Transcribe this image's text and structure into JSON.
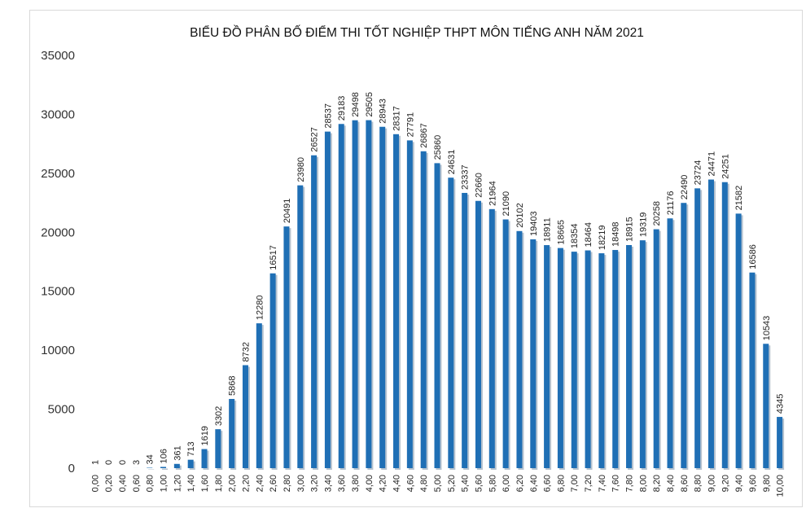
{
  "chart_data": {
    "type": "bar",
    "title": "BIỂU ĐỒ PHÂN BỐ ĐIỂM THI TỐT NGHIỆP THPT MÔN TIẾNG ANH NĂM 2021",
    "xlabel": "",
    "ylabel": "",
    "ylim": [
      0,
      35000
    ],
    "yticks": [
      "0",
      "5000",
      "10000",
      "15000",
      "20000",
      "25000",
      "30000",
      "35000"
    ],
    "grid": false,
    "legend": "none",
    "colors": {
      "bar": "#1f6fb5",
      "bar_shadow": "#b7c3cf",
      "title": "#111111"
    },
    "categories": [
      "0,00",
      "0,20",
      "0,40",
      "0,60",
      "0,80",
      "1,00",
      "1,20",
      "1,40",
      "1,60",
      "1,80",
      "2,00",
      "2,20",
      "2,40",
      "2,60",
      "2,80",
      "3,00",
      "3,20",
      "3,40",
      "3,60",
      "3,80",
      "4,00",
      "4,20",
      "4,40",
      "4,60",
      "4,80",
      "5,00",
      "5,20",
      "5,40",
      "5,60",
      "5,80",
      "6,00",
      "6,20",
      "6,40",
      "6,60",
      "6,80",
      "7,00",
      "7,20",
      "7,40",
      "7,60",
      "7,80",
      "8,00",
      "8,20",
      "8,40",
      "8,60",
      "8,80",
      "9,00",
      "9,20",
      "9,40",
      "9,60",
      "9,80",
      "10,00"
    ],
    "values": [
      1,
      0,
      0,
      3,
      34,
      106,
      361,
      713,
      1619,
      3302,
      5868,
      8732,
      12280,
      16517,
      20491,
      23980,
      26527,
      28537,
      29183,
      29498,
      29505,
      28943,
      28317,
      27791,
      26867,
      25860,
      24631,
      23337,
      22660,
      21964,
      21090,
      20102,
      19403,
      18911,
      18665,
      18354,
      18464,
      18219,
      18498,
      18915,
      19319,
      20258,
      21176,
      22490,
      23724,
      24471,
      24251,
      21582,
      16586,
      10543,
      4345
    ]
  }
}
